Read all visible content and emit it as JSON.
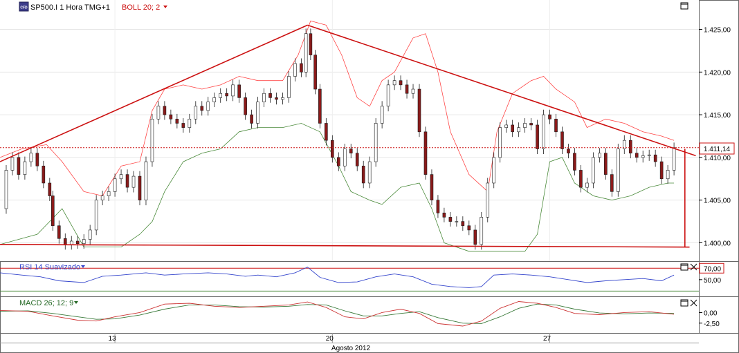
{
  "header": {
    "symbol_label": "SP500.I 1 Hora TMG+1",
    "indicator_label": "BOLL 20; 2",
    "logo_text": "CFD"
  },
  "rsi_panel": {
    "label": "RSI 14 Suavizado"
  },
  "macd_panel": {
    "label": "MACD 26; 12; 9"
  },
  "colors": {
    "price_line": "#cc1111",
    "boll_upper": "#ff4444",
    "boll_lower": "#4a8a3a",
    "rsi_line": "#3344cc",
    "macd_line": "#cc3333",
    "signal_line": "#3a7a3a",
    "candle_up": "#ffffff",
    "candle_down": "#8a1a1a"
  },
  "chart_data": [
    {
      "type": "candlestick",
      "title": "SP500.I 1 Hora TMG+1",
      "y_ticks": [
        "1.400,00",
        "1.405,00",
        "1.410,00",
        "1.415,00",
        "1.420,00",
        "1.425,00"
      ],
      "y_tick_values": [
        1400,
        1405,
        1410,
        1415,
        1420,
        1425
      ],
      "ylim": [
        1398.5,
        1426.5
      ],
      "x_ticks": [
        "13",
        "20",
        "27"
      ],
      "x_tick_positions": [
        13,
        20,
        27
      ],
      "xlabel": "Agosto 2012",
      "xlim": [
        9.3,
        31.8
      ],
      "last_price_label": "1.411,14",
      "last_price": 1411.14,
      "close_series": [
        [
          9.3,
          1404.0
        ],
        [
          9.5,
          1408.5
        ],
        [
          9.7,
          1410.0
        ],
        [
          9.9,
          1408.0
        ],
        [
          10.1,
          1409.5
        ],
        [
          10.3,
          1410.5
        ],
        [
          10.5,
          1409.0
        ],
        [
          10.7,
          1407.0
        ],
        [
          10.9,
          1405.5
        ],
        [
          11.0,
          1402.0
        ],
        [
          11.2,
          1400.5
        ],
        [
          11.4,
          1399.8
        ],
        [
          11.6,
          1400.2
        ],
        [
          11.8,
          1399.9
        ],
        [
          12.0,
          1400.4
        ],
        [
          12.2,
          1401.5
        ],
        [
          12.4,
          1405.0
        ],
        [
          12.6,
          1405.5
        ],
        [
          12.8,
          1406.0
        ],
        [
          13.0,
          1407.5
        ],
        [
          13.2,
          1408.0
        ],
        [
          13.4,
          1406.5
        ],
        [
          13.6,
          1407.8
        ],
        [
          13.8,
          1405.0
        ],
        [
          14.0,
          1409.5
        ],
        [
          14.2,
          1414.5
        ],
        [
          14.4,
          1416.0
        ],
        [
          14.6,
          1415.0
        ],
        [
          14.8,
          1414.5
        ],
        [
          15.0,
          1414.0
        ],
        [
          15.2,
          1413.5
        ],
        [
          15.4,
          1414.5
        ],
        [
          15.6,
          1416.0
        ],
        [
          15.8,
          1415.5
        ],
        [
          16.0,
          1416.5
        ],
        [
          16.2,
          1417.0
        ],
        [
          16.4,
          1417.5
        ],
        [
          16.6,
          1417.2
        ],
        [
          16.8,
          1418.5
        ],
        [
          17.0,
          1417.0
        ],
        [
          17.2,
          1415.0
        ],
        [
          17.4,
          1414.0
        ],
        [
          17.6,
          1416.5
        ],
        [
          17.8,
          1417.5
        ],
        [
          18.0,
          1417.0
        ],
        [
          18.2,
          1416.8
        ],
        [
          18.4,
          1417.0
        ],
        [
          18.6,
          1419.5
        ],
        [
          18.8,
          1421.0
        ],
        [
          19.0,
          1420.0
        ],
        [
          19.15,
          1424.5
        ],
        [
          19.3,
          1422.0
        ],
        [
          19.45,
          1418.0
        ],
        [
          19.6,
          1414.0
        ],
        [
          19.8,
          1412.0
        ],
        [
          20.0,
          1410.0
        ],
        [
          20.2,
          1409.0
        ],
        [
          20.4,
          1411.0
        ],
        [
          20.6,
          1410.5
        ],
        [
          20.8,
          1409.0
        ],
        [
          21.0,
          1407.0
        ],
        [
          21.2,
          1409.5
        ],
        [
          21.4,
          1414.0
        ],
        [
          21.6,
          1416.0
        ],
        [
          21.8,
          1418.5
        ],
        [
          22.0,
          1419.0
        ],
        [
          22.2,
          1418.5
        ],
        [
          22.4,
          1417.5
        ],
        [
          22.6,
          1418.0
        ],
        [
          22.8,
          1413.0
        ],
        [
          23.0,
          1408.0
        ],
        [
          23.2,
          1405.0
        ],
        [
          23.4,
          1403.5
        ],
        [
          23.6,
          1403.0
        ],
        [
          23.8,
          1402.5
        ],
        [
          24.0,
          1402.5
        ],
        [
          24.2,
          1402.0
        ],
        [
          24.4,
          1401.5
        ],
        [
          24.6,
          1399.8
        ],
        [
          24.8,
          1403.0
        ],
        [
          25.0,
          1407.0
        ],
        [
          25.2,
          1410.0
        ],
        [
          25.4,
          1413.5
        ],
        [
          25.6,
          1413.8
        ],
        [
          25.8,
          1413.0
        ],
        [
          26.0,
          1413.5
        ],
        [
          26.2,
          1414.0
        ],
        [
          26.4,
          1413.8
        ],
        [
          26.6,
          1411.0
        ],
        [
          26.8,
          1415.0
        ],
        [
          27.0,
          1414.5
        ],
        [
          27.2,
          1413.0
        ],
        [
          27.4,
          1411.0
        ],
        [
          27.6,
          1410.5
        ],
        [
          27.8,
          1408.5
        ],
        [
          28.0,
          1406.5
        ],
        [
          28.2,
          1407.0
        ],
        [
          28.4,
          1410.0
        ],
        [
          28.6,
          1410.5
        ],
        [
          28.8,
          1408.0
        ],
        [
          29.0,
          1406.0
        ],
        [
          29.2,
          1411.0
        ],
        [
          29.4,
          1412.0
        ],
        [
          29.6,
          1410.5
        ],
        [
          29.8,
          1410.0
        ],
        [
          30.0,
          1410.2
        ],
        [
          30.2,
          1410.3
        ],
        [
          30.4,
          1409.5
        ],
        [
          30.6,
          1407.5
        ],
        [
          30.8,
          1408.5
        ],
        [
          31.0,
          1411.14
        ]
      ],
      "bollinger_upper": [
        [
          9.3,
          1410.0
        ],
        [
          10.0,
          1411.0
        ],
        [
          10.8,
          1411.5
        ],
        [
          11.3,
          1409.5
        ],
        [
          12.0,
          1406.0
        ],
        [
          12.6,
          1405.5
        ],
        [
          13.2,
          1409.0
        ],
        [
          13.8,
          1409.5
        ],
        [
          14.2,
          1415.5
        ],
        [
          14.6,
          1418.0
        ],
        [
          15.2,
          1418.5
        ],
        [
          15.8,
          1418.0
        ],
        [
          16.4,
          1418.5
        ],
        [
          17.0,
          1419.5
        ],
        [
          17.6,
          1419.0
        ],
        [
          18.4,
          1419.0
        ],
        [
          18.9,
          1422.0
        ],
        [
          19.3,
          1426.0
        ],
        [
          19.8,
          1425.5
        ],
        [
          20.3,
          1422.0
        ],
        [
          20.8,
          1417.0
        ],
        [
          21.2,
          1416.0
        ],
        [
          21.6,
          1419.0
        ],
        [
          22.0,
          1420.0
        ],
        [
          22.6,
          1424.0
        ],
        [
          23.0,
          1424.5
        ],
        [
          23.4,
          1420.0
        ],
        [
          23.8,
          1413.0
        ],
        [
          24.4,
          1408.0
        ],
        [
          25.0,
          1406.0
        ],
        [
          25.3,
          1413.0
        ],
        [
          25.8,
          1417.5
        ],
        [
          26.4,
          1419.0
        ],
        [
          26.8,
          1419.5
        ],
        [
          27.2,
          1418.0
        ],
        [
          27.8,
          1416.5
        ],
        [
          28.2,
          1413.5
        ],
        [
          28.8,
          1414.5
        ],
        [
          29.4,
          1414.0
        ],
        [
          30.0,
          1413.0
        ],
        [
          30.6,
          1412.5
        ],
        [
          31.0,
          1412.0
        ]
      ],
      "bollinger_lower": [
        [
          9.3,
          1399.8
        ],
        [
          10.5,
          1401.0
        ],
        [
          11.3,
          1404.0
        ],
        [
          12.0,
          1399.5
        ],
        [
          12.6,
          1399.5
        ],
        [
          13.2,
          1399.5
        ],
        [
          13.8,
          1401.0
        ],
        [
          14.2,
          1402.5
        ],
        [
          14.6,
          1406.0
        ],
        [
          15.2,
          1409.5
        ],
        [
          15.8,
          1410.5
        ],
        [
          16.4,
          1411.0
        ],
        [
          17.0,
          1413.0
        ],
        [
          17.6,
          1413.5
        ],
        [
          18.4,
          1413.5
        ],
        [
          19.0,
          1414.0
        ],
        [
          19.6,
          1413.0
        ],
        [
          20.2,
          1409.0
        ],
        [
          20.6,
          1406.0
        ],
        [
          21.2,
          1405.0
        ],
        [
          21.6,
          1404.5
        ],
        [
          22.2,
          1406.5
        ],
        [
          22.8,
          1407.0
        ],
        [
          23.2,
          1404.0
        ],
        [
          23.6,
          1400.0
        ],
        [
          24.4,
          1399.0
        ],
        [
          25.0,
          1399.0
        ],
        [
          25.6,
          1399.0
        ],
        [
          26.2,
          1399.0
        ],
        [
          26.6,
          1401.0
        ],
        [
          27.0,
          1409.5
        ],
        [
          27.4,
          1410.0
        ],
        [
          27.8,
          1407.0
        ],
        [
          28.4,
          1405.5
        ],
        [
          29.0,
          1405.0
        ],
        [
          29.6,
          1405.5
        ],
        [
          30.2,
          1406.5
        ],
        [
          30.8,
          1407.0
        ],
        [
          31.0,
          1407.0
        ]
      ],
      "trendlines": [
        {
          "from": [
            9.3,
            1409.5
          ],
          "to": [
            19.2,
            1425.5
          ]
        },
        {
          "from": [
            19.2,
            1425.5
          ],
          "to": [
            31.7,
            1410.2
          ]
        },
        {
          "from": [
            9.3,
            1399.8
          ],
          "to": [
            31.5,
            1399.5
          ]
        },
        {
          "from": [
            31.35,
            1399.5
          ],
          "to": [
            31.35,
            1411.0
          ]
        }
      ]
    },
    {
      "type": "line",
      "title": "RSI 14 Suavizado",
      "y_ticks": [
        "50,00",
        "70,00"
      ],
      "y_tick_values": [
        50,
        70
      ],
      "ylim": [
        22,
        80
      ],
      "reference_line": 70,
      "series": [
        {
          "values": [
            [
              9.3,
              62
            ],
            [
              10.0,
              58
            ],
            [
              10.6,
              55
            ],
            [
              11.2,
              48
            ],
            [
              12.0,
              45
            ],
            [
              12.6,
              56
            ],
            [
              13.2,
              58
            ],
            [
              14.0,
              62
            ],
            [
              14.6,
              58
            ],
            [
              15.2,
              60
            ],
            [
              16.0,
              62
            ],
            [
              16.6,
              60
            ],
            [
              17.2,
              56
            ],
            [
              17.6,
              58
            ],
            [
              18.2,
              55
            ],
            [
              18.8,
              62
            ],
            [
              19.2,
              72
            ],
            [
              19.6,
              54
            ],
            [
              20.2,
              45
            ],
            [
              20.8,
              46
            ],
            [
              21.4,
              55
            ],
            [
              22.0,
              60
            ],
            [
              22.6,
              55
            ],
            [
              23.2,
              42
            ],
            [
              23.8,
              38
            ],
            [
              24.4,
              36
            ],
            [
              24.8,
              38
            ],
            [
              25.2,
              58
            ],
            [
              25.8,
              60
            ],
            [
              26.4,
              58
            ],
            [
              27.0,
              55
            ],
            [
              27.6,
              50
            ],
            [
              28.2,
              45
            ],
            [
              28.8,
              48
            ],
            [
              29.4,
              50
            ],
            [
              30.0,
              52
            ],
            [
              30.6,
              48
            ],
            [
              31.0,
              58
            ]
          ]
        }
      ]
    },
    {
      "type": "line",
      "title": "MACD 26; 12; 9",
      "y_ticks": [
        "0,00",
        "-2,50"
      ],
      "y_tick_values": [
        0,
        -2.5
      ],
      "ylim": [
        -4.5,
        3.5
      ],
      "series": [
        {
          "values": [
            [
              9.3,
              0.5
            ],
            [
              10.2,
              0.3
            ],
            [
              11.0,
              -0.8
            ],
            [
              11.8,
              -1.8
            ],
            [
              12.4,
              -2.0
            ],
            [
              13.0,
              -1.0
            ],
            [
              13.8,
              0.0
            ],
            [
              14.6,
              2.0
            ],
            [
              15.4,
              2.2
            ],
            [
              16.2,
              1.5
            ],
            [
              17.0,
              1.2
            ],
            [
              17.8,
              1.5
            ],
            [
              18.6,
              1.8
            ],
            [
              19.2,
              2.5
            ],
            [
              19.8,
              1.2
            ],
            [
              20.4,
              -1.0
            ],
            [
              21.0,
              -1.5
            ],
            [
              21.6,
              0.0
            ],
            [
              22.2,
              0.8
            ],
            [
              22.8,
              -0.2
            ],
            [
              23.4,
              -2.6
            ],
            [
              24.2,
              -3.2
            ],
            [
              24.8,
              -2.0
            ],
            [
              25.4,
              1.0
            ],
            [
              26.0,
              2.6
            ],
            [
              26.6,
              2.2
            ],
            [
              27.2,
              1.2
            ],
            [
              27.8,
              -0.2
            ],
            [
              28.6,
              -0.5
            ],
            [
              29.4,
              0.0
            ],
            [
              30.2,
              0.2
            ],
            [
              31.0,
              -0.4
            ]
          ]
        },
        {
          "values": [
            [
              9.3,
              0.3
            ],
            [
              10.2,
              0.4
            ],
            [
              11.0,
              -0.2
            ],
            [
              11.8,
              -1.0
            ],
            [
              12.4,
              -1.6
            ],
            [
              13.0,
              -1.5
            ],
            [
              13.8,
              -0.6
            ],
            [
              14.6,
              0.8
            ],
            [
              15.4,
              1.8
            ],
            [
              16.2,
              1.8
            ],
            [
              17.0,
              1.4
            ],
            [
              17.8,
              1.3
            ],
            [
              18.6,
              1.5
            ],
            [
              19.2,
              1.9
            ],
            [
              19.8,
              1.8
            ],
            [
              20.4,
              0.4
            ],
            [
              21.0,
              -0.8
            ],
            [
              21.6,
              -0.8
            ],
            [
              22.2,
              -0.2
            ],
            [
              22.8,
              0.2
            ],
            [
              23.4,
              -1.2
            ],
            [
              24.2,
              -2.5
            ],
            [
              24.8,
              -2.6
            ],
            [
              25.4,
              -1.0
            ],
            [
              26.0,
              1.0
            ],
            [
              26.6,
              2.0
            ],
            [
              27.2,
              1.8
            ],
            [
              27.8,
              0.8
            ],
            [
              28.6,
              -0.1
            ],
            [
              29.4,
              -0.3
            ],
            [
              30.2,
              -0.1
            ],
            [
              31.0,
              -0.2
            ]
          ]
        }
      ]
    }
  ]
}
